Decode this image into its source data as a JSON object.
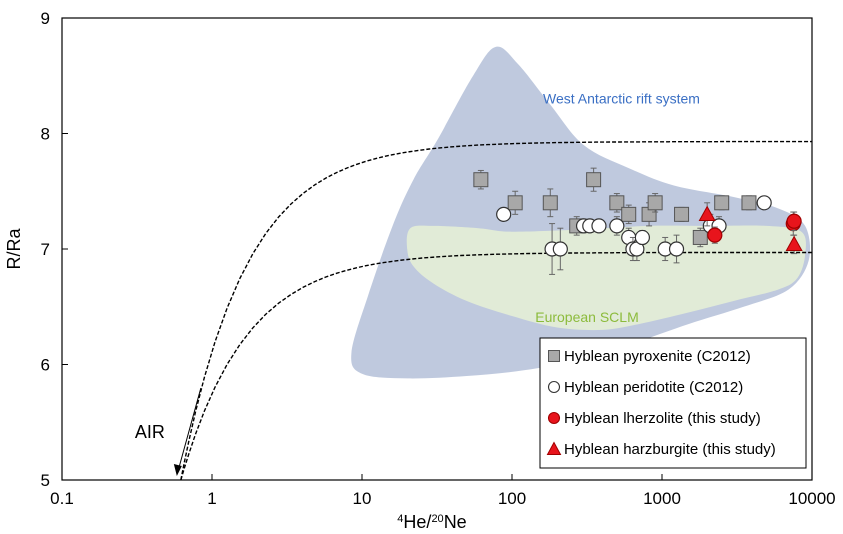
{
  "chart_data": {
    "type": "scatter",
    "title": "",
    "xlabel_parts": {
      "sup": "4",
      "base1": "He/",
      "sup2": "20",
      "base2": "Ne"
    },
    "ylabel": "R/Ra",
    "xscale": "log",
    "xlim": [
      0.1,
      10000
    ],
    "ylim": [
      5,
      9
    ],
    "x_ticks": [
      0.1,
      1,
      10,
      100,
      1000,
      10000
    ],
    "x_tick_labels": [
      "0.1",
      "1",
      "10",
      "100",
      "1000",
      "10000"
    ],
    "y_ticks": [
      5,
      6,
      7,
      8,
      9
    ],
    "y_tick_labels": [
      "5",
      "6",
      "7",
      "8",
      "9"
    ],
    "grid": false,
    "legend_position": "bottom-right",
    "regions": [
      {
        "label": "West Antarctic rift system",
        "color": "#b4c0d8",
        "label_color": "#3a6fc4",
        "outline": [
          [
            8.5,
            6.1
          ],
          [
            11,
            6.6
          ],
          [
            16,
            7.2
          ],
          [
            22,
            7.6
          ],
          [
            32,
            7.95
          ],
          [
            55,
            8.5
          ],
          [
            78,
            8.75
          ],
          [
            110,
            8.6
          ],
          [
            180,
            8.25
          ],
          [
            300,
            7.9
          ],
          [
            600,
            7.7
          ],
          [
            1200,
            7.55
          ],
          [
            3000,
            7.45
          ],
          [
            6000,
            7.35
          ],
          [
            9000,
            7.2
          ],
          [
            9500,
            6.9
          ],
          [
            7000,
            6.65
          ],
          [
            3500,
            6.5
          ],
          [
            1500,
            6.35
          ],
          [
            700,
            6.2
          ],
          [
            300,
            6.05
          ],
          [
            120,
            5.95
          ],
          [
            50,
            5.9
          ],
          [
            20,
            5.88
          ],
          [
            10,
            5.92
          ]
        ]
      },
      {
        "label": "European SCLM",
        "color": "#e4eed6",
        "label_color": "#8cbb3c",
        "outline": [
          [
            20,
            7.0
          ],
          [
            21,
            7.18
          ],
          [
            30,
            7.2
          ],
          [
            60,
            7.18
          ],
          [
            100,
            7.15
          ],
          [
            300,
            7.17
          ],
          [
            800,
            7.2
          ],
          [
            2000,
            7.2
          ],
          [
            5000,
            7.2
          ],
          [
            8500,
            7.15
          ],
          [
            9000,
            6.95
          ],
          [
            8000,
            6.75
          ],
          [
            6000,
            6.65
          ],
          [
            3000,
            6.55
          ],
          [
            1500,
            6.45
          ],
          [
            700,
            6.35
          ],
          [
            400,
            6.3
          ],
          [
            200,
            6.32
          ],
          [
            100,
            6.42
          ],
          [
            50,
            6.55
          ],
          [
            30,
            6.7
          ],
          [
            22,
            6.85
          ]
        ]
      }
    ],
    "mixing_curves": [
      {
        "air": [
          0.62,
          5.0
        ],
        "endmember": [
          10000,
          7.93
        ]
      },
      {
        "air": [
          0.62,
          5.0
        ],
        "endmember": [
          10000,
          6.97
        ]
      }
    ],
    "air_label": "AIR",
    "series": [
      {
        "name": "Hyblean pyroxenite (C2012)",
        "marker": "square",
        "color": "#a8a8a8",
        "edge": "#555555",
        "points": [
          [
            62,
            7.6,
            0.08
          ],
          [
            105,
            7.4,
            0.1
          ],
          [
            180,
            7.4,
            0.12
          ],
          [
            270,
            7.2,
            0.08
          ],
          [
            350,
            7.6,
            0.1
          ],
          [
            500,
            7.4,
            0.08
          ],
          [
            600,
            7.3,
            0.08
          ],
          [
            820,
            7.3,
            0.1
          ],
          [
            900,
            7.4,
            0.08
          ],
          [
            1350,
            7.3,
            0.06
          ],
          [
            1800,
            7.1,
            0.08
          ],
          [
            2500,
            7.4,
            0.06
          ],
          [
            3800,
            7.4,
            0.06
          ]
        ]
      },
      {
        "name": "Hyblean peridotite (C2012)",
        "marker": "circle-open",
        "color": "#ffffff",
        "edge": "#333333",
        "points": [
          [
            88,
            7.3,
            0.05
          ],
          [
            185,
            7.0,
            0.22
          ],
          [
            210,
            7.0,
            0.18
          ],
          [
            300,
            7.2,
            0.06
          ],
          [
            330,
            7.2,
            0.05
          ],
          [
            380,
            7.2,
            0.05
          ],
          [
            500,
            7.2,
            0.08
          ],
          [
            600,
            7.1,
            0.08
          ],
          [
            640,
            7.0,
            0.1
          ],
          [
            680,
            7.0,
            0.1
          ],
          [
            740,
            7.1,
            0.06
          ],
          [
            1050,
            7.0,
            0.1
          ],
          [
            1250,
            7.0,
            0.12
          ],
          [
            2100,
            7.2,
            0.1
          ],
          [
            2400,
            7.2,
            0.08
          ],
          [
            4800,
            7.4,
            0.05
          ]
        ]
      },
      {
        "name": "Hyblean lherzolite (this study)",
        "marker": "circle",
        "color": "#e8141c",
        "edge": "#a00000",
        "points": [
          [
            2250,
            7.12,
            0.07
          ],
          [
            7500,
            7.22,
            0.1
          ],
          [
            7600,
            7.24,
            0.08
          ]
        ]
      },
      {
        "name": "Hyblean harzburgite (this study)",
        "marker": "triangle",
        "color": "#e8141c",
        "edge": "#a00000",
        "points": [
          [
            2000,
            7.3,
            0.1
          ],
          [
            7600,
            7.04,
            0.08
          ]
        ]
      }
    ]
  }
}
